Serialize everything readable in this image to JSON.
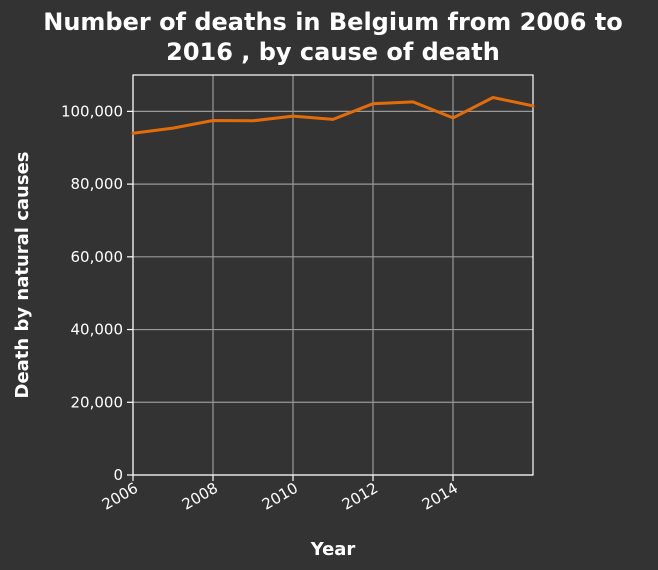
{
  "chart_data": {
    "type": "line",
    "title_lines": [
      "Number of deaths in Belgium from 2006 to",
      "2016 , by cause of death"
    ],
    "xlabel": "Year",
    "ylabel": "Death by natural causes",
    "xlim": [
      2006,
      2016
    ],
    "ylim": [
      0,
      110000
    ],
    "x_ticks": [
      2006,
      2008,
      2010,
      2012,
      2014
    ],
    "x_tick_labels": [
      "2006",
      "2008",
      "2010",
      "2012",
      "2014"
    ],
    "y_ticks": [
      0,
      20000,
      40000,
      60000,
      80000,
      100000
    ],
    "y_tick_labels": [
      "0",
      "20,000",
      "40,000",
      "60,000",
      "80,000",
      "100,000"
    ],
    "grid": true,
    "series": [
      {
        "x": [
          2006,
          2007,
          2008,
          2009,
          2010,
          2011,
          2012,
          2013,
          2014,
          2015,
          2016
        ],
        "values": [
          94000,
          95400,
          97500,
          97400,
          98700,
          97800,
          102100,
          102600,
          98200,
          103800,
          101500
        ]
      }
    ],
    "colors": {
      "background": "#333333",
      "grid": "#999999",
      "axis": "#ffffff",
      "line": "#e36c0a"
    }
  }
}
